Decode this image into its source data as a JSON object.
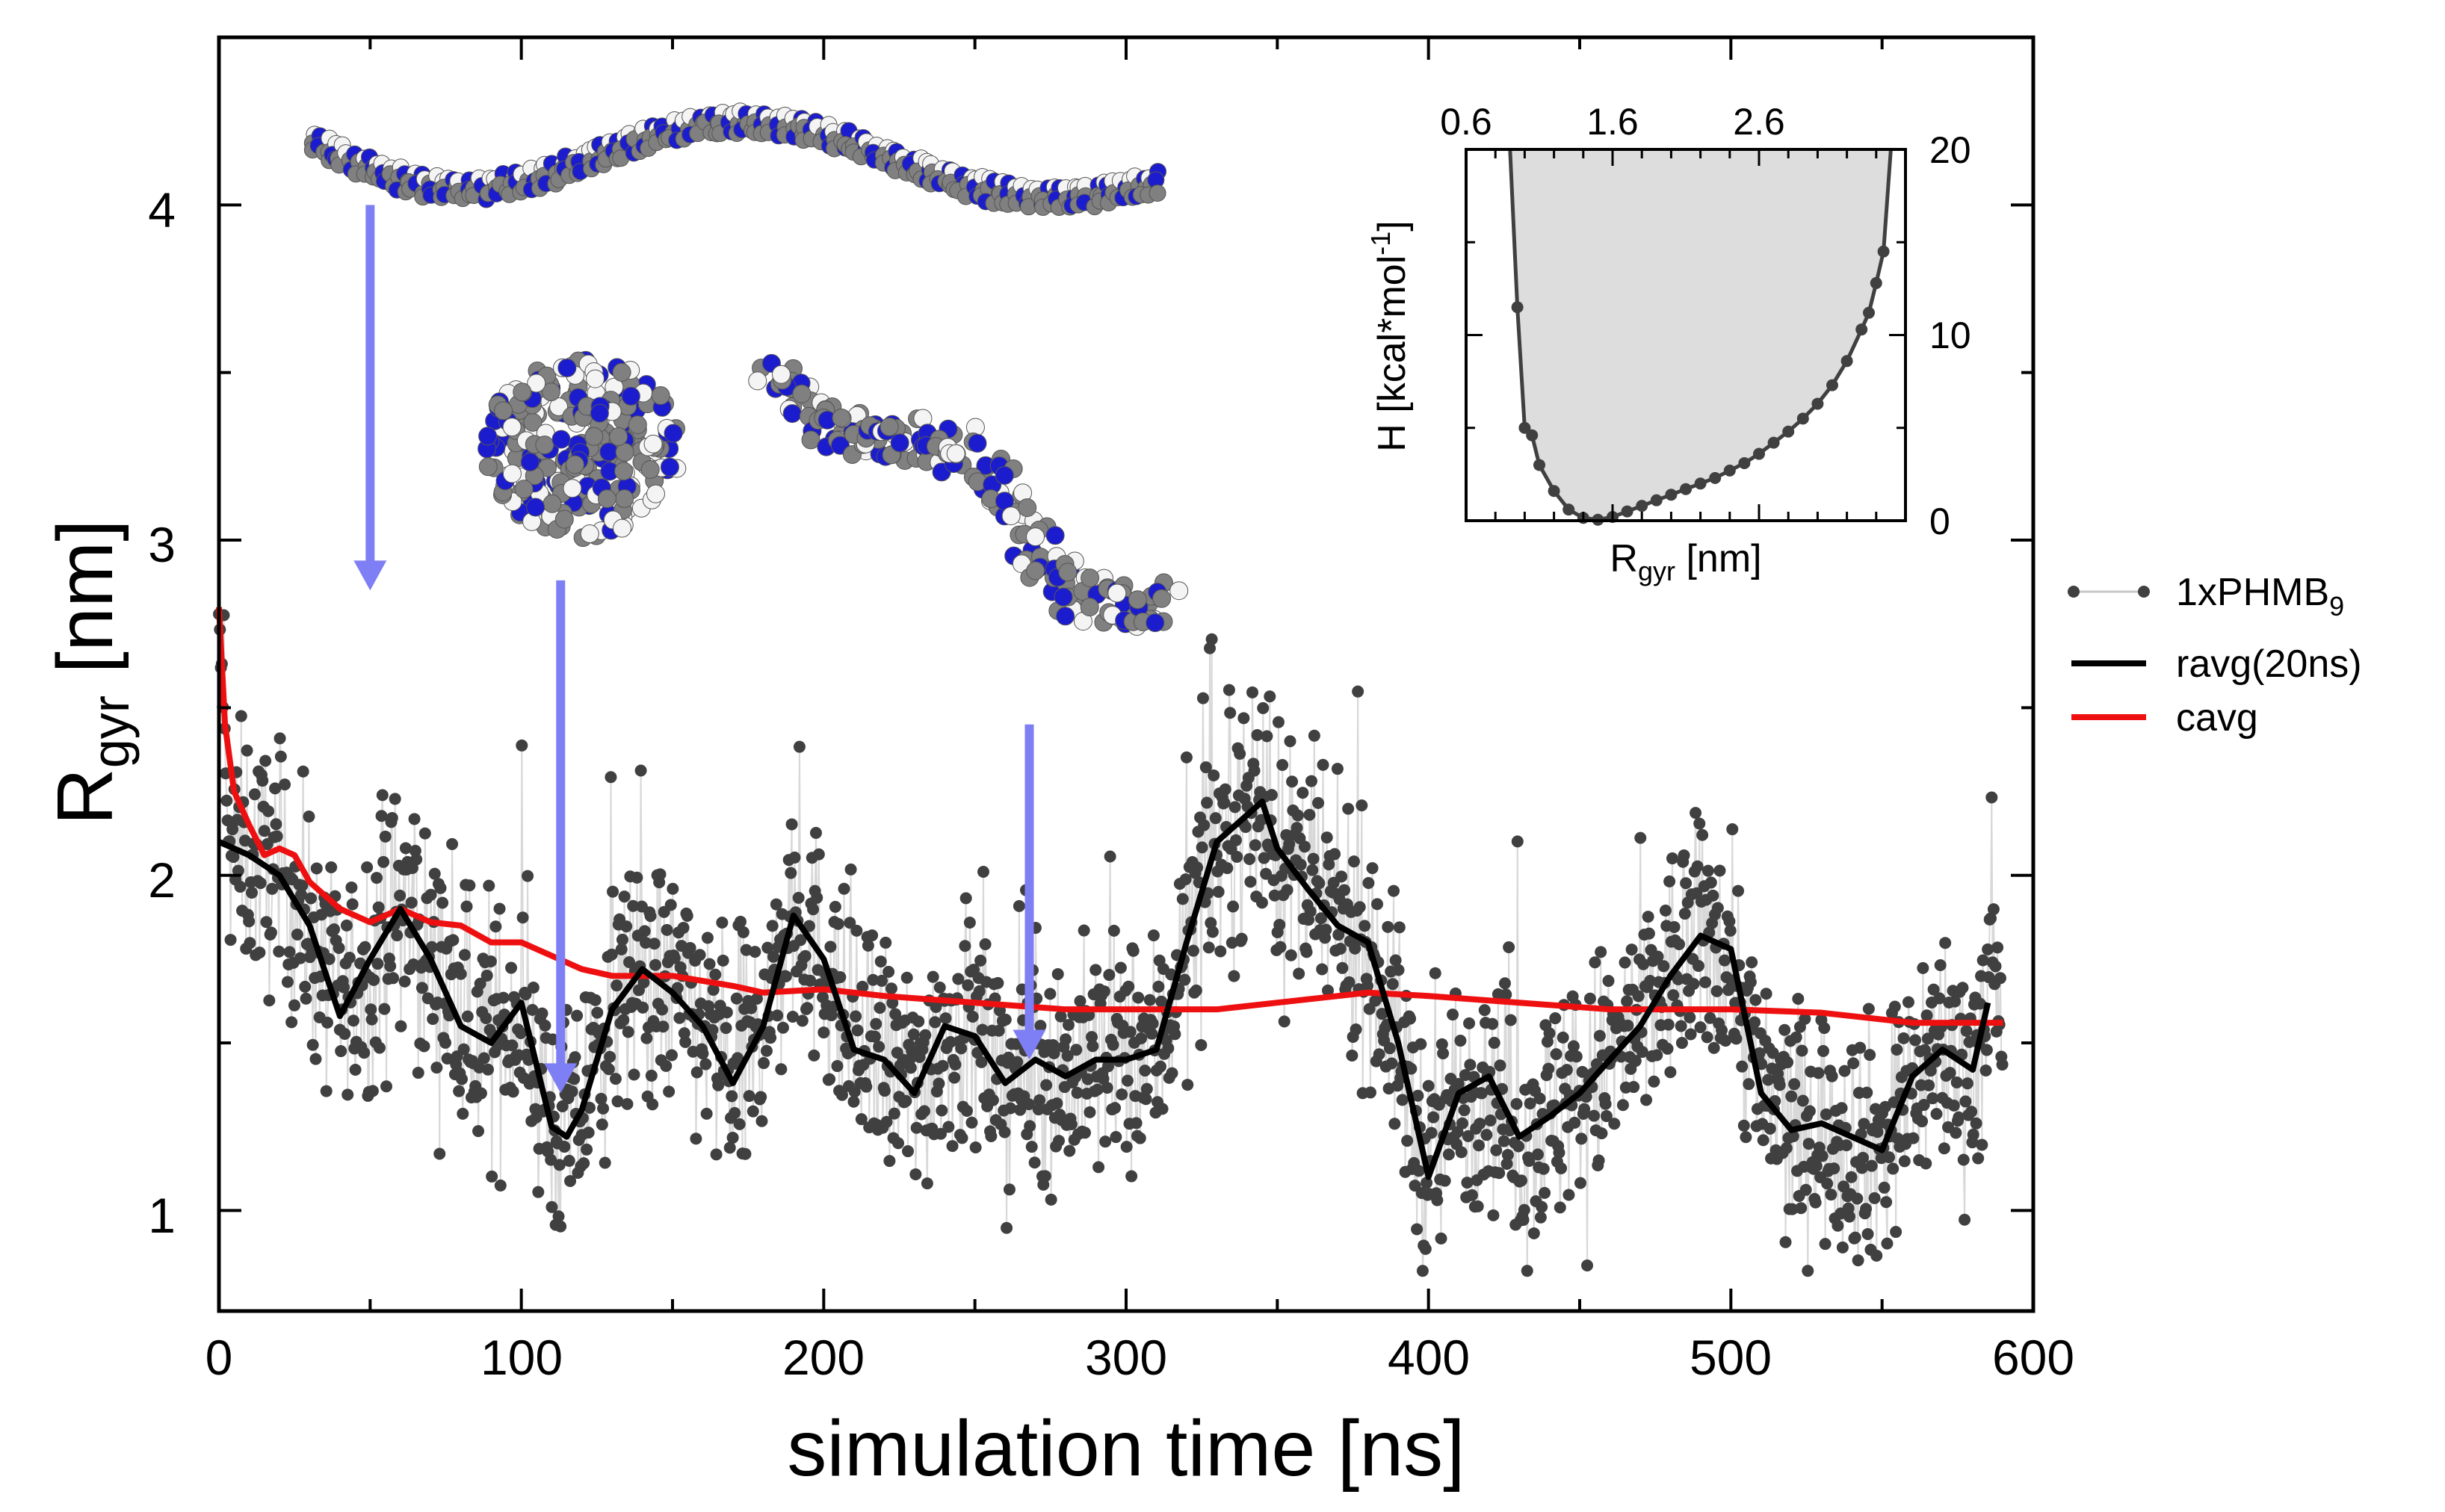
{
  "chart_data": [
    {
      "type": "scatter",
      "xlabel": "simulation time [ns]",
      "ylabel": {
        "base": "R",
        "sub": "gyr",
        "unit": " [nm]"
      },
      "xlim": [
        0,
        600
      ],
      "ylim": [
        0.7,
        4.5
      ],
      "xticks": [
        0,
        100,
        200,
        300,
        400,
        500,
        600
      ],
      "xtick_labels": [
        "0",
        "100",
        "200",
        "300",
        "400",
        "500",
        "600"
      ],
      "yticks": [
        1,
        2,
        3,
        4
      ],
      "ytick_labels": [
        "1",
        "2",
        "3",
        "4"
      ],
      "grid": false,
      "legend_position": "right-outside",
      "series": [
        {
          "name": "1xPHMB",
          "name_sub": "9",
          "style": "points",
          "color": "#404040",
          "raw_mean_source": "ravg(20ns)",
          "noise_amplitude": 0.32
        },
        {
          "name": "ravg(20ns)",
          "style": "line",
          "color": "#000000",
          "x": [
            0,
            10,
            20,
            30,
            40,
            50,
            60,
            70,
            80,
            90,
            100,
            110,
            115,
            120,
            130,
            140,
            150,
            160,
            170,
            180,
            190,
            200,
            210,
            220,
            230,
            240,
            250,
            260,
            270,
            280,
            290,
            300,
            310,
            320,
            330,
            340,
            345,
            350,
            360,
            370,
            380,
            390,
            400,
            410,
            420,
            430,
            440,
            450,
            460,
            470,
            480,
            490,
            500,
            510,
            520,
            530,
            540,
            550,
            560,
            570,
            580,
            585
          ],
          "y": [
            2.1,
            2.06,
            2.0,
            1.85,
            1.58,
            1.75,
            1.9,
            1.75,
            1.55,
            1.5,
            1.62,
            1.25,
            1.22,
            1.3,
            1.6,
            1.72,
            1.65,
            1.55,
            1.38,
            1.55,
            1.88,
            1.75,
            1.48,
            1.45,
            1.35,
            1.55,
            1.52,
            1.38,
            1.45,
            1.4,
            1.45,
            1.45,
            1.48,
            1.8,
            2.1,
            2.18,
            2.22,
            2.08,
            1.96,
            1.85,
            1.8,
            1.5,
            1.1,
            1.35,
            1.4,
            1.22,
            1.28,
            1.35,
            1.45,
            1.55,
            1.7,
            1.82,
            1.78,
            1.35,
            1.24,
            1.26,
            1.22,
            1.18,
            1.4,
            1.48,
            1.42,
            1.62
          ]
        },
        {
          "name": "cavg",
          "style": "line",
          "color": "#ee1010",
          "x": [
            0,
            2,
            5,
            10,
            15,
            20,
            25,
            30,
            40,
            50,
            60,
            70,
            80,
            90,
            100,
            110,
            120,
            130,
            150,
            170,
            180,
            200,
            220,
            250,
            280,
            300,
            330,
            350,
            380,
            400,
            430,
            460,
            500,
            530,
            560,
            590
          ],
          "y": [
            2.8,
            2.45,
            2.25,
            2.15,
            2.06,
            2.08,
            2.06,
            1.98,
            1.9,
            1.86,
            1.9,
            1.86,
            1.85,
            1.8,
            1.8,
            1.76,
            1.72,
            1.7,
            1.7,
            1.67,
            1.65,
            1.66,
            1.64,
            1.62,
            1.6,
            1.6,
            1.6,
            1.62,
            1.65,
            1.64,
            1.62,
            1.6,
            1.6,
            1.59,
            1.56,
            1.56
          ]
        }
      ],
      "annotations": {
        "arrow_color": "#7f7ff5",
        "arrows": [
          {
            "x": 50,
            "y_from": 4.0,
            "y_to": 2.85
          },
          {
            "x": 113,
            "y_from": 2.88,
            "y_to": 1.35
          },
          {
            "x": 268,
            "y_from": 2.45,
            "y_to": 1.45
          }
        ],
        "structures": [
          {
            "name": "extended-polymer",
            "x": 155,
            "y": 4.1
          },
          {
            "name": "compact-polymer",
            "x": 110,
            "y": 3.15
          },
          {
            "name": "partially-folded-polymer",
            "x": 210,
            "y": 3.1
          }
        ]
      }
    },
    {
      "type": "line",
      "title": "inset",
      "xlabel": {
        "base": "R",
        "sub": "gyr",
        "unit": " [nm]"
      },
      "ylabel": {
        "prefix": "H [kcal*mol",
        "sup": "-1",
        "suffix": "]"
      },
      "xlim": [
        0.6,
        3.6
      ],
      "ylim": [
        0,
        20
      ],
      "xticks": [
        0.6,
        1.6,
        2.6
      ],
      "xtick_labels": [
        "0.6",
        "1.6",
        "2.6"
      ],
      "yticks": [
        0,
        10,
        20
      ],
      "ytick_labels": [
        "0",
        "10",
        "20"
      ],
      "fill_color": "#dddddd",
      "series": [
        {
          "name": "H",
          "x": [
            0.9,
            0.95,
            1.0,
            1.05,
            1.1,
            1.2,
            1.3,
            1.4,
            1.5,
            1.6,
            1.7,
            1.8,
            1.9,
            2.0,
            2.1,
            2.2,
            2.3,
            2.4,
            2.5,
            2.6,
            2.7,
            2.8,
            2.9,
            3.0,
            3.1,
            3.2,
            3.3,
            3.35,
            3.4,
            3.45,
            3.5
          ],
          "y": [
            20,
            11.5,
            5.0,
            4.6,
            3.0,
            1.6,
            0.6,
            0.15,
            0.05,
            0.2,
            0.5,
            0.8,
            1.1,
            1.4,
            1.7,
            2.0,
            2.3,
            2.7,
            3.1,
            3.6,
            4.2,
            4.8,
            5.5,
            6.3,
            7.3,
            8.6,
            10.3,
            11.2,
            12.8,
            14.5,
            20
          ]
        }
      ]
    }
  ]
}
